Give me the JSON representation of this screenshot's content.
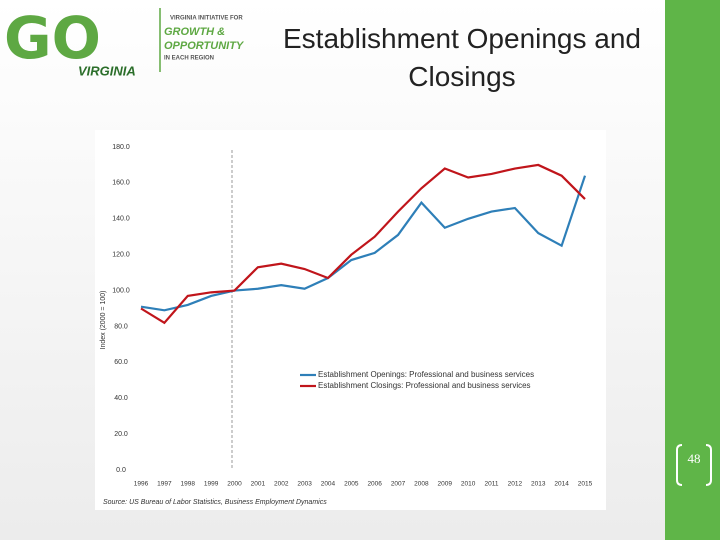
{
  "logo": {
    "mark": "GO",
    "state": "VIRGINIA",
    "line1": "VIRGINIA INITIATIVE FOR",
    "line2": "GROWTH &",
    "line3": "OPPORTUNITY",
    "line4": "IN EACH REGION"
  },
  "slide_number": "48",
  "chart_data": {
    "type": "line",
    "title": "Establishment Openings and Closings",
    "y_label": "Index (2000 = 100)",
    "source": "Source: US Bureau of Labor Statistics, Business Employment Dynamics",
    "categories": [
      "1996",
      "1997",
      "1998",
      "1999",
      "2000",
      "2001",
      "2002",
      "2003",
      "2004",
      "2005",
      "2006",
      "2007",
      "2008",
      "2009",
      "2010",
      "2011",
      "2012",
      "2013",
      "2014",
      "2015"
    ],
    "series": [
      {
        "name": "Establishment Openings: Professional and business services",
        "color": "#2e7fb8",
        "values": [
          91,
          89,
          92,
          97,
          100,
          101,
          103,
          101,
          107,
          117,
          121,
          131,
          149,
          135,
          140,
          144,
          146,
          132,
          125,
          164
        ]
      },
      {
        "name": "Establishment Closings: Professional and business services",
        "color": "#c0151b",
        "values": [
          90,
          82,
          97,
          99,
          100,
          113,
          115,
          112,
          107,
          120,
          130,
          144,
          157,
          168,
          163,
          165,
          168,
          170,
          164,
          151
        ]
      }
    ],
    "ylim": [
      0,
      180
    ],
    "yticks": [
      {
        "value": 0,
        "label": "0.0"
      },
      {
        "value": 20,
        "label": "20.0"
      },
      {
        "value": 40,
        "label": "40.0"
      },
      {
        "value": 60,
        "label": "60.0"
      },
      {
        "value": 80,
        "label": "80.0"
      },
      {
        "value": 100,
        "label": "100.0"
      },
      {
        "value": 120,
        "label": "120.0"
      },
      {
        "value": 140,
        "label": "140.0"
      },
      {
        "value": 160,
        "label": "160.0"
      },
      {
        "value": 180,
        "label": "180.0"
      }
    ],
    "grid": false
  }
}
